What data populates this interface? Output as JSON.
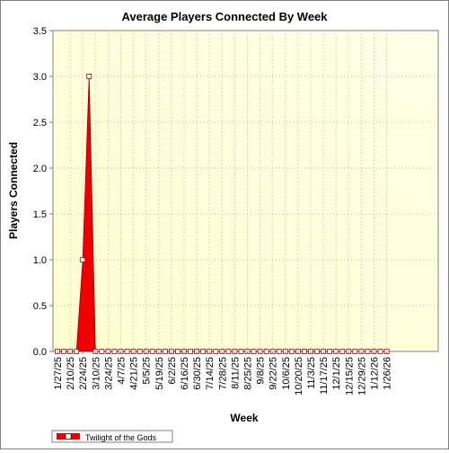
{
  "chart_data": {
    "type": "area",
    "title": "Average Players Connected By Week",
    "xlabel": "Week",
    "ylabel": "Players Connected",
    "ylim": [
      0,
      3.5
    ],
    "yticks": [
      "0.0",
      "0.5",
      "1.0",
      "1.5",
      "2.0",
      "2.5",
      "3.0",
      "3.5"
    ],
    "grid": true,
    "legend_position": "bottom-left",
    "categories": [
      "1/27/25",
      "2/3/25",
      "2/10/25",
      "2/17/25",
      "2/24/25",
      "3/3/25",
      "3/10/25",
      "3/17/25",
      "3/24/25",
      "3/31/25",
      "4/7/25",
      "4/14/25",
      "4/21/25",
      "4/28/25",
      "5/5/25",
      "5/12/25",
      "5/19/25",
      "5/26/25",
      "6/2/25",
      "6/9/25",
      "6/16/25",
      "6/23/25",
      "6/30/25",
      "7/7/25",
      "7/14/25",
      "7/21/25",
      "7/28/25",
      "8/4/25",
      "8/11/25",
      "8/18/25",
      "8/25/25",
      "9/1/25",
      "9/8/25",
      "9/15/25",
      "9/22/25",
      "9/29/25",
      "10/6/25",
      "10/13/25",
      "10/20/25",
      "10/27/25",
      "11/3/25",
      "11/10/25",
      "11/17/25",
      "11/24/25",
      "12/1/25",
      "12/8/25",
      "12/15/25",
      "12/22/25",
      "12/29/25",
      "1/5/26",
      "1/12/26",
      "1/19/26",
      "1/26/26"
    ],
    "tick_labels": [
      "1/27/25",
      "2/10/25",
      "2/24/25",
      "3/10/25",
      "3/24/25",
      "4/7/25",
      "4/21/25",
      "5/5/25",
      "5/19/25",
      "6/2/25",
      "6/16/25",
      "6/30/25",
      "7/14/25",
      "7/28/25",
      "8/11/25",
      "8/25/25",
      "9/8/25",
      "9/22/25",
      "10/6/25",
      "10/20/25",
      "11/3/25",
      "11/17/25",
      "12/1/25",
      "12/15/25",
      "12/29/25",
      "1/12/26",
      "1/26/26"
    ],
    "series": [
      {
        "name": "Twilight of the Gods",
        "color": "#ee0000",
        "values": [
          0,
          0,
          0,
          0,
          1,
          3,
          0,
          0,
          0,
          0,
          0,
          0,
          0,
          0,
          0,
          0,
          0,
          0,
          0,
          0,
          0,
          0,
          0,
          0,
          0,
          0,
          0,
          0,
          0,
          0,
          0,
          0,
          0,
          0,
          0,
          0,
          0,
          0,
          0,
          0,
          0,
          0,
          0,
          0,
          0,
          0,
          0,
          0,
          0,
          0,
          0,
          0,
          0
        ]
      }
    ]
  }
}
